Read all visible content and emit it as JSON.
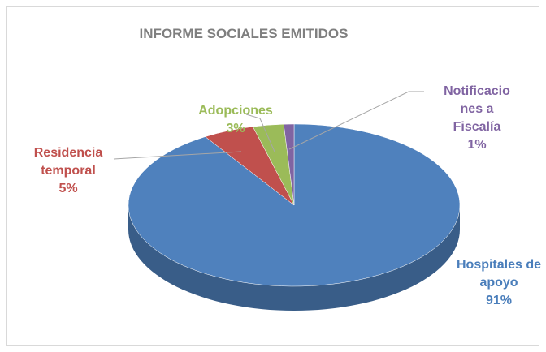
{
  "chart_data": {
    "type": "pie",
    "title": "INFORME SOCIALES EMITIDOS",
    "categories": [
      "Hospitales de apoyo",
      "Residencia temporal",
      "Adopciones",
      "Notificaciones a Fiscalía"
    ],
    "values": [
      91,
      5,
      3,
      1
    ],
    "value_labels": [
      "91%",
      "5%",
      "3%",
      "1%"
    ],
    "colors": [
      "#4f81bd",
      "#c0504d",
      "#9bbb59",
      "#8064a2"
    ]
  }
}
